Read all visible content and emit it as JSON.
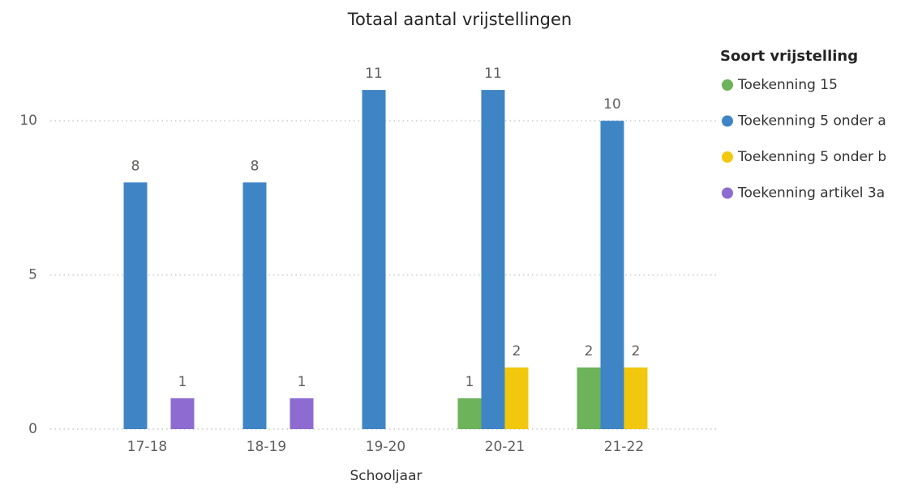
{
  "chart_data": {
    "type": "bar",
    "title": "Totaal aantal vrijstellingen",
    "x_label": "Schooljaar",
    "categories": [
      "17-18",
      "18-19",
      "19-20",
      "20-21",
      "21-22"
    ],
    "legend_title": "Soort vrijstelling",
    "series": [
      {
        "name": "Toekenning 15",
        "color": "#6cb35a",
        "values": [
          null,
          null,
          null,
          1,
          2
        ]
      },
      {
        "name": "Toekenning 5 onder a",
        "color": "#3f85c6",
        "values": [
          8,
          8,
          11,
          11,
          10
        ]
      },
      {
        "name": "Toekenning 5 onder b",
        "color": "#f2c80f",
        "values": [
          null,
          null,
          null,
          2,
          2
        ]
      },
      {
        "name": "Toekenning artikel 3a",
        "color": "#8e6bd1",
        "values": [
          1,
          1,
          null,
          null,
          null
        ]
      }
    ],
    "ylim": [
      0,
      12
    ],
    "yticks": [
      0,
      5,
      10
    ],
    "grid": true,
    "legend": "right"
  }
}
